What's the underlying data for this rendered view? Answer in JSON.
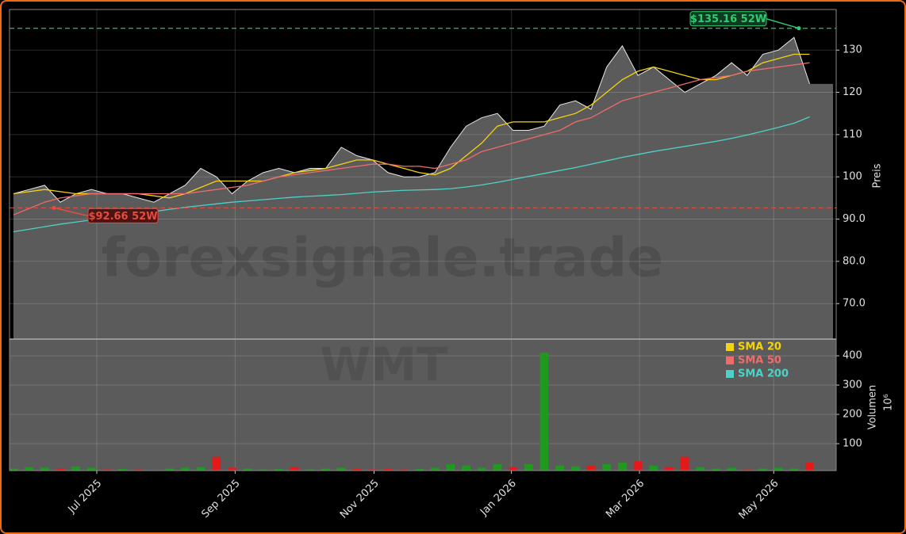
{
  "chart_data": {
    "type": "line",
    "price": {
      "values": [
        96,
        97,
        98,
        94,
        96,
        97,
        96,
        96,
        95,
        94,
        96,
        98,
        102,
        100,
        96,
        99,
        101,
        102,
        101,
        102,
        102,
        107,
        105,
        104,
        101,
        100,
        100,
        101,
        107,
        112,
        114,
        115,
        111,
        111,
        112,
        117,
        118,
        116,
        126,
        131,
        124,
        126,
        123,
        120,
        122,
        124,
        127,
        124,
        129,
        130,
        133,
        122
      ],
      "color": "#e8e8e8",
      "fill": "#5b5b5b"
    },
    "series": [
      {
        "name": "SMA 20",
        "color": "#f5d40f",
        "values": [
          96,
          96.5,
          97,
          96.5,
          96,
          96,
          96,
          96,
          96,
          95.5,
          95,
          96,
          97.5,
          99,
          99,
          99,
          99,
          100,
          101,
          101.5,
          102,
          103,
          104,
          104,
          103,
          102,
          101,
          100.5,
          102,
          105,
          108,
          112,
          113,
          113,
          113,
          114,
          115,
          117,
          120,
          123,
          125,
          126,
          125,
          124,
          123,
          123,
          124,
          125,
          127,
          128,
          129,
          129
        ]
      },
      {
        "name": "SMA 50",
        "color": "#f06b6b",
        "values": [
          91,
          92.5,
          94,
          95,
          95.5,
          96,
          96,
          96,
          96,
          96,
          96,
          96,
          96.5,
          97,
          97.5,
          98,
          99,
          100,
          100.5,
          101,
          101.5,
          102,
          102.5,
          103,
          103,
          102.5,
          102.5,
          102,
          103,
          104,
          106,
          107,
          108,
          109,
          110,
          111,
          113,
          114,
          116,
          118,
          119,
          120,
          121,
          122,
          123,
          123.5,
          124,
          125,
          125.5,
          126,
          126.5,
          127
        ]
      },
      {
        "name": "SMA 200",
        "color": "#4fd1c5",
        "values": [
          87,
          87.6,
          88.2,
          88.8,
          89.3,
          89.8,
          90.3,
          90.8,
          91.3,
          91.8,
          92.3,
          92.8,
          93.2,
          93.6,
          94,
          94.3,
          94.6,
          94.9,
          95.2,
          95.4,
          95.6,
          95.8,
          96.1,
          96.4,
          96.6,
          96.8,
          96.9,
          97,
          97.2,
          97.6,
          98.1,
          98.7,
          99.4,
          100.1,
          100.8,
          101.5,
          102.2,
          103,
          103.8,
          104.6,
          105.3,
          106,
          106.6,
          107.2,
          107.8,
          108.4,
          109.1,
          109.9,
          110.8,
          111.7,
          112.7,
          114.2
        ]
      }
    ],
    "volume": {
      "values": [
        15,
        20,
        18,
        15,
        22,
        18,
        12,
        14,
        12,
        10,
        15,
        18,
        20,
        55,
        18,
        15,
        12,
        14,
        20,
        12,
        15,
        18,
        14,
        12,
        15,
        12,
        14,
        18,
        30,
        25,
        18,
        30,
        20,
        30,
        410,
        25,
        22,
        25,
        30,
        35,
        40,
        25,
        20,
        55,
        20,
        15,
        18,
        12,
        15,
        18,
        15,
        35
      ],
      "up_color": "#1f9a1f",
      "down_color": "#e31a1a",
      "ylim": [
        8,
        457
      ],
      "yticks": [
        100,
        200,
        300,
        400
      ],
      "ylabel": "Volumen",
      "exponent": "10⁶"
    },
    "ylim": [
      61.6,
      139.6
    ],
    "yticks": [
      {
        "value": 70,
        "label": "70.0"
      },
      {
        "value": 80,
        "label": "80.0"
      },
      {
        "value": 90,
        "label": "90.0"
      },
      100,
      110,
      120,
      130
    ],
    "ylabel": "Preis",
    "xlim": [
      -0.25,
      52.7
    ],
    "xticks": [
      {
        "value": 5.34,
        "label": "Jul 2025"
      },
      {
        "value": 14.2,
        "label": "Sep 2025"
      },
      {
        "value": 23.1,
        "label": "Nov 2025"
      },
      {
        "value": 31.9,
        "label": "Jan 2026"
      },
      {
        "value": 40.1,
        "label": "Mar 2026"
      },
      {
        "value": 48.7,
        "label": "May 2026"
      }
    ],
    "annotations": [
      {
        "text": "$135.16 52W",
        "value": 135.16,
        "color": "#2ecc71"
      },
      {
        "text": "$92.66 52W",
        "value": 92.66,
        "color": "#e74c3c"
      }
    ],
    "watermark": "forexsignale.trade",
    "symbol": "WMT",
    "grid": true,
    "legend": "upper right"
  }
}
